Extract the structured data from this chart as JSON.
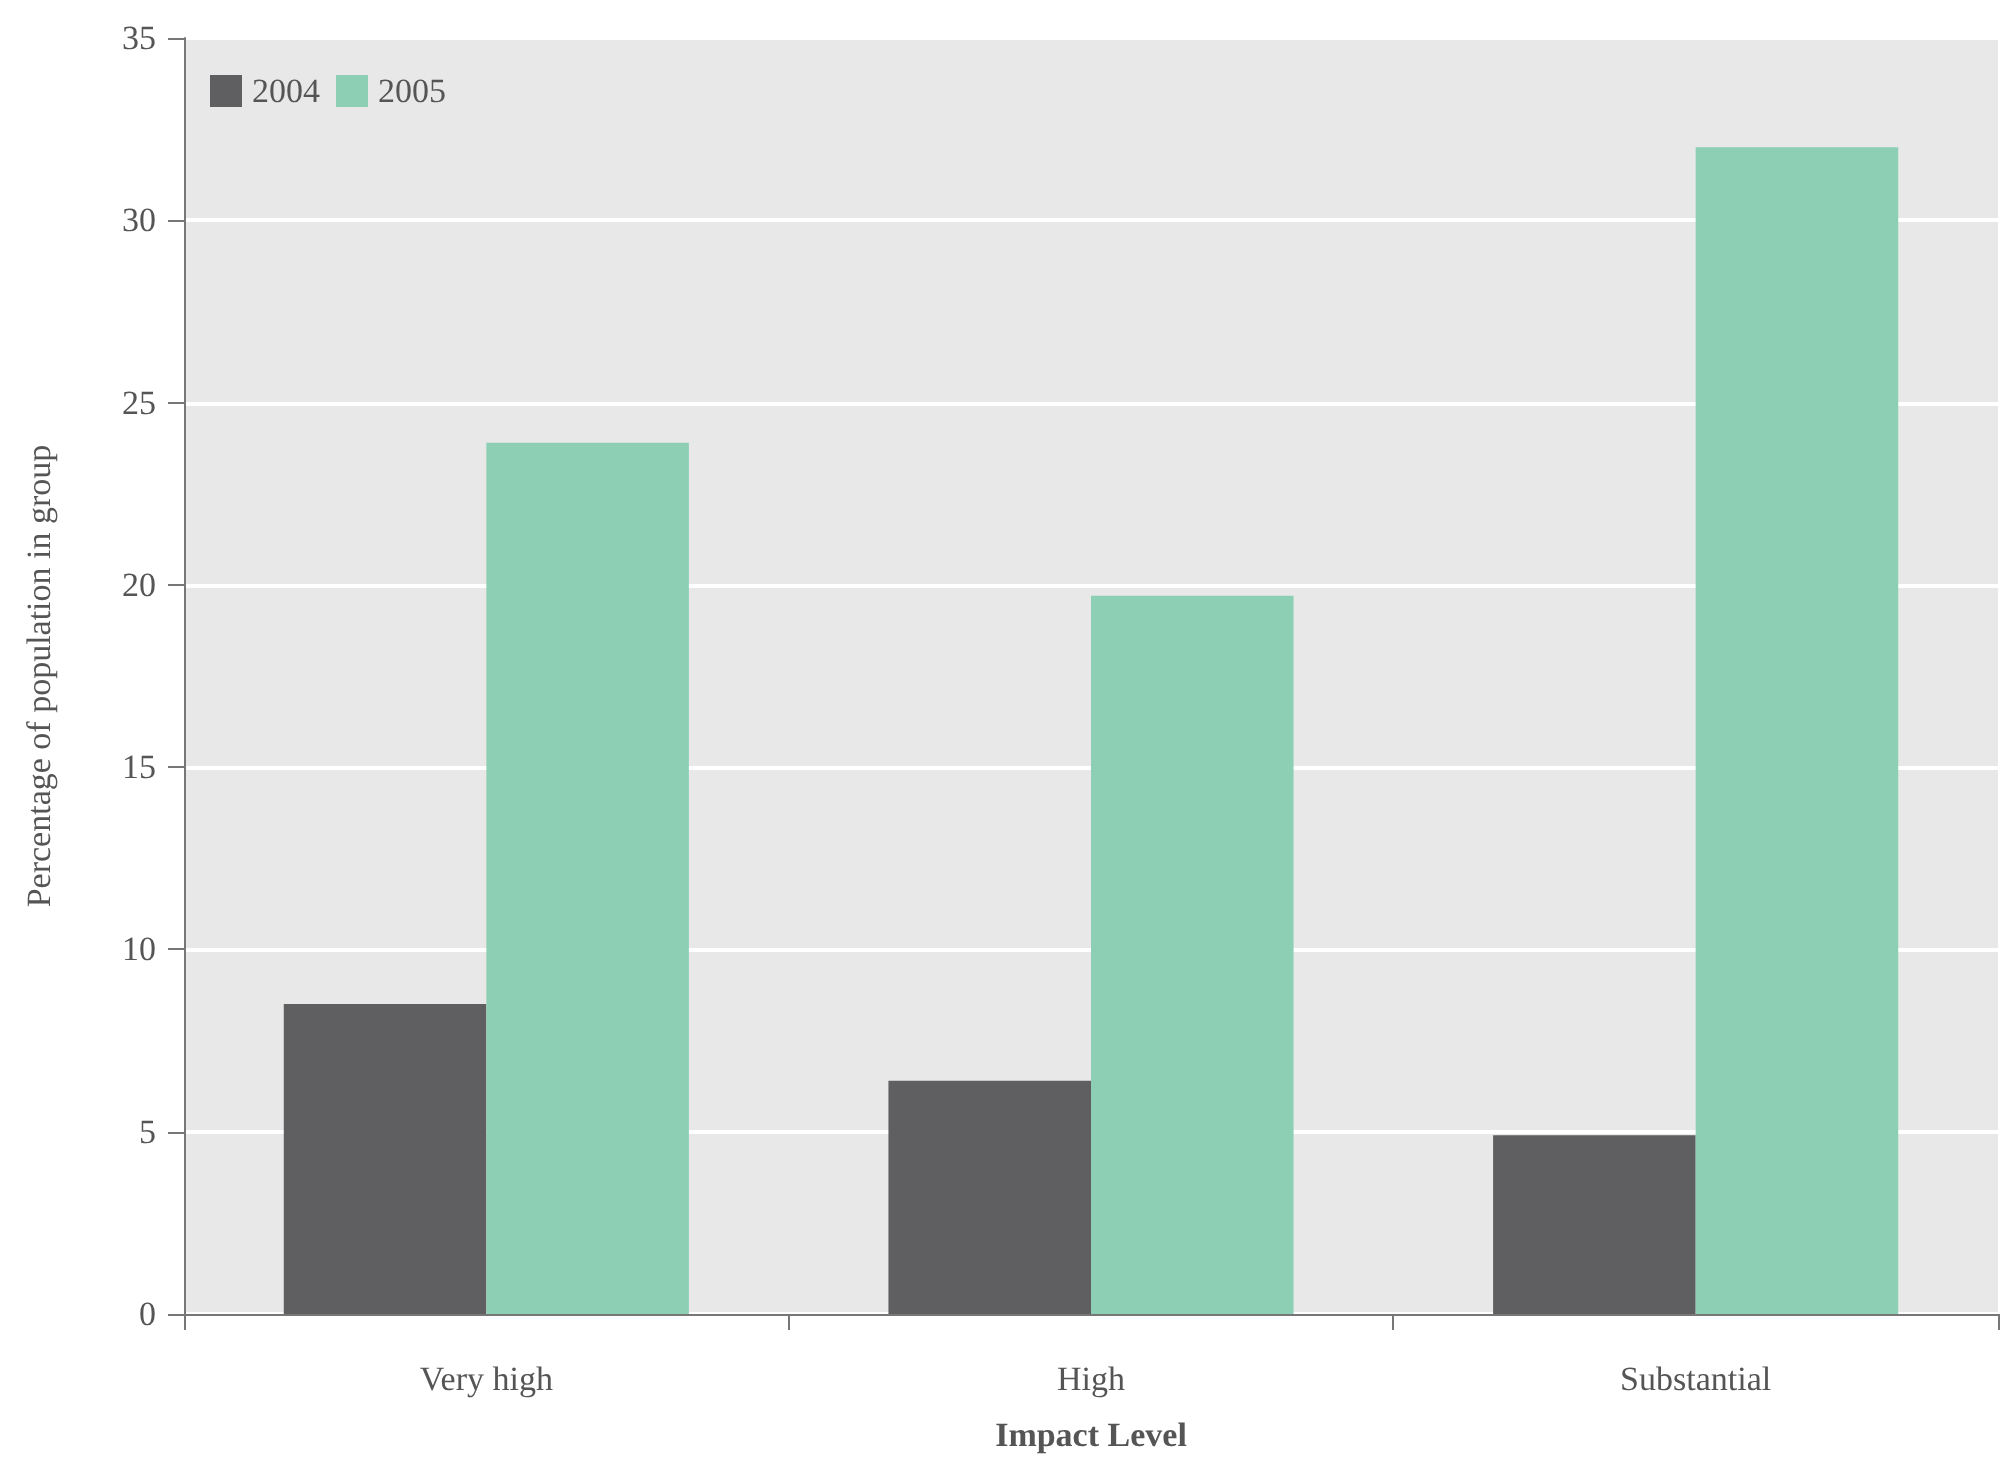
{
  "chart_data": {
    "type": "bar",
    "xlabel": "Impact Level",
    "ylabel": "Percentage of population in group",
    "categories": [
      "Very high",
      "High",
      "Substantial"
    ],
    "series": [
      {
        "name": "2004",
        "color": "#5f5f62",
        "values": [
          8.5,
          6.4,
          4.9
        ]
      },
      {
        "name": "2005",
        "color": "#8dcfb5",
        "values": [
          23.9,
          19.7,
          32.0
        ]
      }
    ],
    "ylim": [
      0,
      35
    ],
    "yticks": [
      0,
      5,
      10,
      15,
      20,
      25,
      30,
      35
    ],
    "grid": "y",
    "legend": "top left"
  }
}
